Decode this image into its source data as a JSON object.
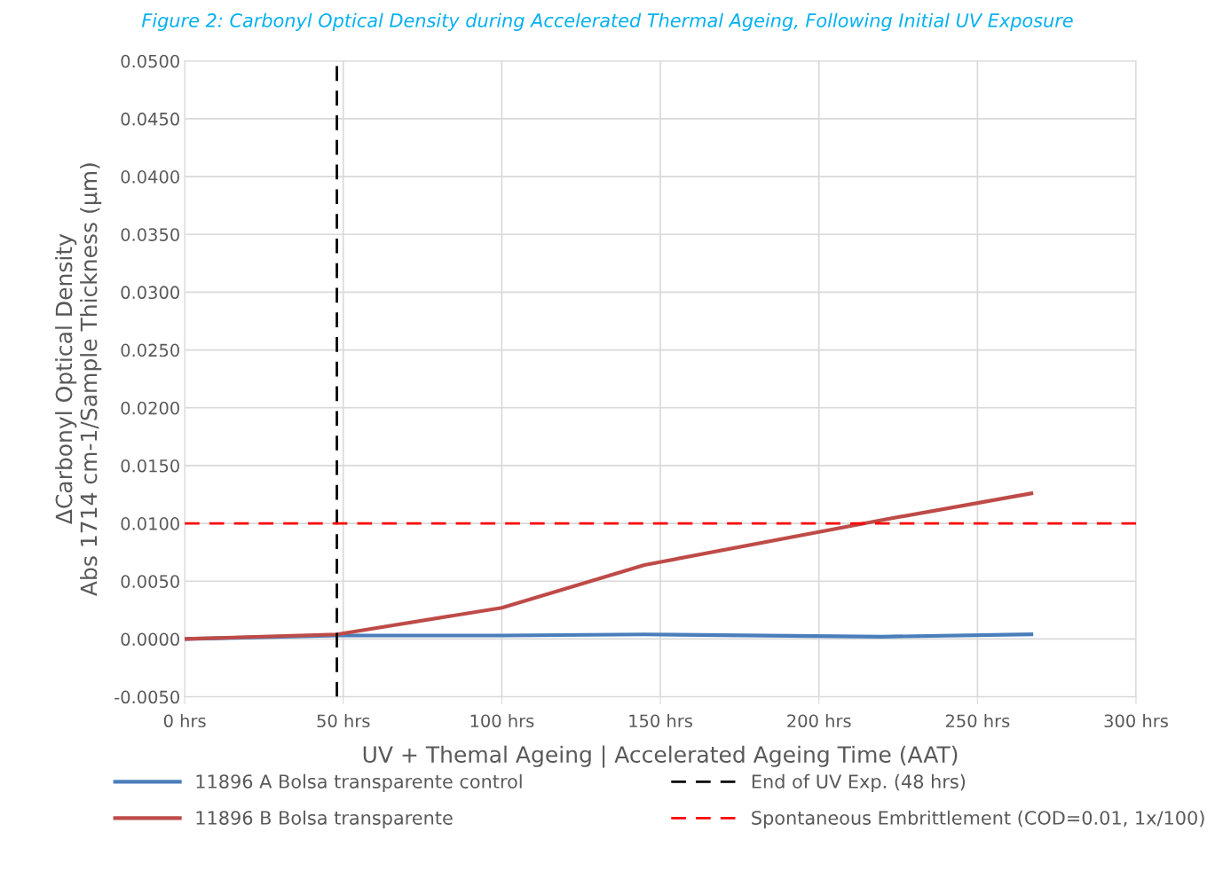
{
  "chart_data": {
    "type": "line",
    "title": "Figure 2: Carbonyl Optical Density during Accelerated Thermal Ageing, Following Initial UV Exposure",
    "xlabel": "UV + Themal Ageing | Accelerated Ageing Time (AAT)",
    "ylabel": "ΔCarbonyl Optical Density\nAbs 1714 cm-1/Sample Thickness (µm)",
    "x": [
      0,
      48,
      100,
      145,
      220,
      267
    ],
    "series": [
      {
        "name": "11896 A Bolsa transparente control",
        "color": "#4a7ebb",
        "values": [
          0,
          0.0003,
          0.0003,
          0.0004,
          0.0002,
          0.0004
        ]
      },
      {
        "name": "11896 B Bolsa transparente",
        "color": "#be4b48",
        "values": [
          0,
          0.0004,
          0.0027,
          0.0064,
          0.0103,
          0.0126
        ]
      }
    ],
    "ref_lines": [
      {
        "axis": "x",
        "value": 48,
        "label": "End of UV Exp. (48 hrs)",
        "color": "#000000",
        "line_style": "dashed"
      },
      {
        "axis": "y",
        "value": 0.01,
        "label": "Spontaneous Embrittlement (COD=0.01, 1x/100)",
        "color": "#ff0000",
        "line_style": "dashed"
      }
    ],
    "xlim": [
      0,
      300
    ],
    "xticks": [
      {
        "value": 0,
        "label": "0 hrs"
      },
      {
        "value": 50,
        "label": "50 hrs"
      },
      {
        "value": 100,
        "label": "100 hrs"
      },
      {
        "value": 150,
        "label": "150 hrs"
      },
      {
        "value": 200,
        "label": "200 hrs"
      },
      {
        "value": 250,
        "label": "250 hrs"
      },
      {
        "value": 300,
        "label": "300 hrs"
      }
    ],
    "ylim": [
      -0.005,
      0.05
    ],
    "yticks": [
      {
        "value": -0.005,
        "label": "-0.0050"
      },
      {
        "value": 0,
        "label": "0.0000"
      },
      {
        "value": 0.005,
        "label": "0.0050"
      },
      {
        "value": 0.01,
        "label": "0.0100"
      },
      {
        "value": 0.015,
        "label": "0.0150"
      },
      {
        "value": 0.02,
        "label": "0.0200"
      },
      {
        "value": 0.025,
        "label": "0.0250"
      },
      {
        "value": 0.03,
        "label": "0.0300"
      },
      {
        "value": 0.035,
        "label": "0.0350"
      },
      {
        "value": 0.04,
        "label": "0.0400"
      },
      {
        "value": 0.045,
        "label": "0.0450"
      },
      {
        "value": 0.05,
        "label": "0.0500"
      }
    ],
    "grid": true,
    "legend": "bottom",
    "marker": "none",
    "line_style": "solid"
  }
}
